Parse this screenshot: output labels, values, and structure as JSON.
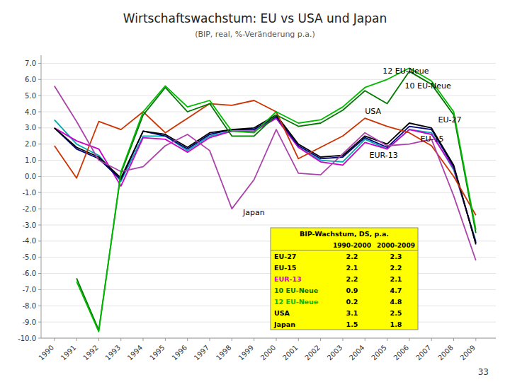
{
  "chart_data": {
    "type": "line",
    "title": "Wirtschaftswachstum: EU vs USA und Japan",
    "subtitle": "(BIP, real, %-Veränderung p.a.)",
    "page_number": "33",
    "x": [
      1990,
      1991,
      1992,
      1993,
      1994,
      1995,
      1996,
      1997,
      1998,
      1999,
      2000,
      2001,
      2002,
      2003,
      2004,
      2005,
      2006,
      2007,
      2008,
      2009
    ],
    "xlim": [
      1989.4,
      2009.9
    ],
    "xticks": [
      1990,
      1991,
      1992,
      1993,
      1994,
      1995,
      1996,
      1997,
      1998,
      1999,
      2000,
      2001,
      2002,
      2003,
      2004,
      2005,
      2006,
      2007,
      2008,
      2009
    ],
    "ylim": [
      -10.0,
      7.5
    ],
    "yticks": [
      {
        "value": 7,
        "label": "7.0"
      },
      {
        "value": 6,
        "label": "6.0"
      },
      {
        "value": 5,
        "label": "5.0"
      },
      {
        "value": 4,
        "label": "4.0"
      },
      {
        "value": 3,
        "label": "3.0"
      },
      {
        "value": 2,
        "label": "2.0"
      },
      {
        "value": 1,
        "label": "1.0"
      },
      {
        "value": 0,
        "label": "0.0"
      },
      {
        "value": -1,
        "label": "-1.0"
      },
      {
        "value": -2,
        "label": "-2.0"
      },
      {
        "value": -3,
        "label": "-3.0"
      },
      {
        "value": -4,
        "label": "-4.0"
      },
      {
        "value": -5,
        "label": "-5.0"
      },
      {
        "value": -6,
        "label": "-6.0"
      },
      {
        "value": -7,
        "label": "-7.0"
      },
      {
        "value": -8,
        "label": "-8.0"
      },
      {
        "value": -9,
        "label": "-9.0"
      },
      {
        "value": -10,
        "label": "-10.0"
      }
    ],
    "grid": true,
    "series": [
      {
        "color": "#00AAAA",
        "values": [
          3.5,
          2.0,
          1.3,
          -0.3,
          2.5,
          2.5,
          1.6,
          2.5,
          2.8,
          2.8,
          3.6,
          1.8,
          1.0,
          0.9,
          2.3,
          1.7,
          2.9,
          2.7,
          0.4,
          -4.0
        ]
      },
      {
        "name": "EUR-13",
        "color": "#CC00CC",
        "values": [
          3.0,
          2.2,
          1.7,
          -0.6,
          2.4,
          2.3,
          1.5,
          2.4,
          2.8,
          2.8,
          3.6,
          1.8,
          0.9,
          0.7,
          2.1,
          1.7,
          2.9,
          2.6,
          0.5,
          -4.1
        ]
      },
      {
        "name": "EU-15",
        "color": "#000080",
        "values": [
          3.0,
          1.7,
          1.1,
          -0.2,
          2.8,
          2.5,
          1.7,
          2.6,
          2.9,
          2.9,
          3.7,
          1.9,
          1.1,
          1.2,
          2.4,
          1.8,
          3.1,
          2.9,
          0.6,
          -4.1
        ]
      },
      {
        "name": "EU-27",
        "color": "#000000",
        "values": [
          3.0,
          1.8,
          1.2,
          -0.1,
          2.8,
          2.6,
          1.8,
          2.7,
          2.9,
          3.0,
          3.8,
          2.0,
          1.2,
          1.3,
          2.5,
          2.0,
          3.3,
          3.0,
          0.7,
          -4.2
        ]
      },
      {
        "name": "USA",
        "color": "#CC3300",
        "values": [
          1.9,
          -0.1,
          3.4,
          2.9,
          4.0,
          2.7,
          3.6,
          4.5,
          4.4,
          4.7,
          4.0,
          1.1,
          1.8,
          2.5,
          3.6,
          3.1,
          2.7,
          1.9,
          0.0,
          -2.4
        ]
      },
      {
        "name": "Japan",
        "color": "#AA44AA",
        "values": [
          5.6,
          3.4,
          1.0,
          0.3,
          0.6,
          1.9,
          2.6,
          1.6,
          -2.0,
          -0.2,
          2.9,
          0.2,
          0.1,
          1.4,
          2.7,
          1.9,
          2.0,
          2.3,
          -1.2,
          -5.2
        ]
      },
      {
        "name": "10 EU-Neue",
        "color": "#007700",
        "values": [
          null,
          -6.3,
          -9.5,
          0.2,
          3.8,
          5.5,
          4.0,
          4.5,
          2.5,
          2.5,
          3.8,
          3.1,
          3.3,
          4.1,
          5.3,
          4.5,
          6.5,
          5.7,
          3.8,
          -3.5
        ]
      },
      {
        "name": "12 EU-Neue",
        "color": "#00BB00",
        "values": [
          null,
          -6.5,
          -9.6,
          0.3,
          4.0,
          5.6,
          4.3,
          4.7,
          2.8,
          2.7,
          4.0,
          3.3,
          3.5,
          4.3,
          5.5,
          6.0,
          6.7,
          5.9,
          4.0,
          -3.3
        ]
      }
    ],
    "annotations": [
      {
        "text": "12 EU-Neue",
        "x": 2004.8,
        "y": 6.35
      },
      {
        "text": "10 EU-Neue",
        "x": 2005.8,
        "y": 5.45
      },
      {
        "text": "USA",
        "x": 2004.0,
        "y": 3.85
      },
      {
        "text": "EU-27",
        "x": 2007.3,
        "y": 3.35
      },
      {
        "text": "EUR-13",
        "x": 2004.2,
        "y": 1.15
      },
      {
        "text": "EU-15",
        "x": 2006.5,
        "y": 2.15
      },
      {
        "text": "Japan",
        "x": 1998.5,
        "y": -2.4
      }
    ],
    "table": {
      "title": "BIP-Wachstum, DS, p.a.",
      "color": "#FFFF00",
      "columns": [
        "1990-2000",
        "2000-2009"
      ],
      "rows": [
        {
          "label": "EU-27",
          "color": "#000000",
          "values": [
            2.2,
            2.3
          ]
        },
        {
          "label": "EU-15",
          "color": "#000000",
          "values": [
            2.1,
            2.2
          ]
        },
        {
          "label": "EUR-13",
          "color": "#CC00CC",
          "values": [
            2.2,
            2.1
          ]
        },
        {
          "label": "10 EU-Neue",
          "color": "#007700",
          "values": [
            0.9,
            4.7
          ]
        },
        {
          "label": "12 EU-Neue",
          "color": "#00BB00",
          "values": [
            0.2,
            4.8
          ]
        },
        {
          "label": "USA",
          "color": "#000000",
          "values": [
            3.1,
            2.5
          ]
        },
        {
          "label": "Japan",
          "color": "#000000",
          "values": [
            1.5,
            1.8
          ]
        }
      ]
    }
  }
}
